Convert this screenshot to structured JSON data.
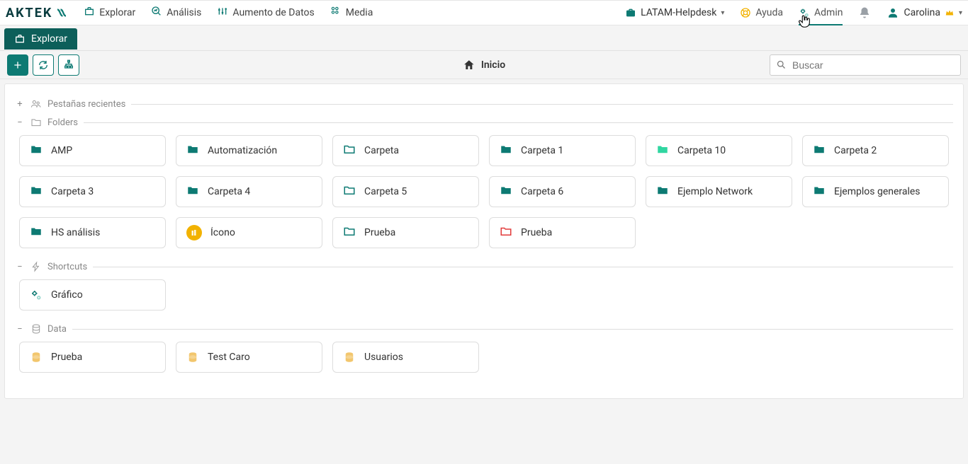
{
  "brand": "AKTEK",
  "nav": {
    "items": [
      {
        "label": "Explorar",
        "icon": "briefcase"
      },
      {
        "label": "Análisis",
        "icon": "zoom-chart"
      },
      {
        "label": "Aumento de Datos",
        "icon": "sliders"
      },
      {
        "label": "Media",
        "icon": "apps"
      }
    ]
  },
  "workspace": {
    "label": "LATAM-Helpdesk"
  },
  "topright": {
    "help_label": "Ayuda",
    "admin_label": "Admin",
    "user_name": "Carolina"
  },
  "active_tab": {
    "label": "Explorar"
  },
  "toolbar": {
    "home_label": "Inicio",
    "search_placeholder": "Buscar"
  },
  "sections": {
    "recent_tabs_label": "Pestañas recientes",
    "folders_label": "Folders",
    "shortcuts_label": "Shortcuts",
    "data_label": "Data"
  },
  "colors": {
    "folder_teal": "#0d7a73",
    "folder_mint": "#30d6a1",
    "folder_outline_teal": "#0d7a73",
    "folder_red": "#e23b3b",
    "data_amber": "#f2c66d"
  },
  "folders": [
    {
      "label": "AMP",
      "style": "solid-teal"
    },
    {
      "label": "Automatización",
      "style": "solid-teal"
    },
    {
      "label": "Carpeta",
      "style": "outline-teal"
    },
    {
      "label": "Carpeta 1",
      "style": "solid-teal"
    },
    {
      "label": "Carpeta 10",
      "style": "solid-mint"
    },
    {
      "label": "Carpeta 2",
      "style": "solid-teal"
    },
    {
      "label": "Carpeta 3",
      "style": "solid-teal"
    },
    {
      "label": "Carpeta 4",
      "style": "solid-teal"
    },
    {
      "label": "Carpeta 5",
      "style": "outline-teal"
    },
    {
      "label": "Carpeta 6",
      "style": "solid-teal"
    },
    {
      "label": "Ejemplo Network",
      "style": "solid-teal"
    },
    {
      "label": "Ejemplos generales",
      "style": "solid-teal"
    },
    {
      "label": "HS análisis",
      "style": "solid-teal"
    },
    {
      "label": "Ícono",
      "style": "icon-circle"
    },
    {
      "label": "Prueba",
      "style": "outline-teal"
    },
    {
      "label": "Prueba",
      "style": "outline-red"
    }
  ],
  "shortcuts": [
    {
      "label": "Gráfico"
    }
  ],
  "data_items": [
    {
      "label": "Prueba"
    },
    {
      "label": "Test Caro"
    },
    {
      "label": "Usuarios"
    }
  ]
}
